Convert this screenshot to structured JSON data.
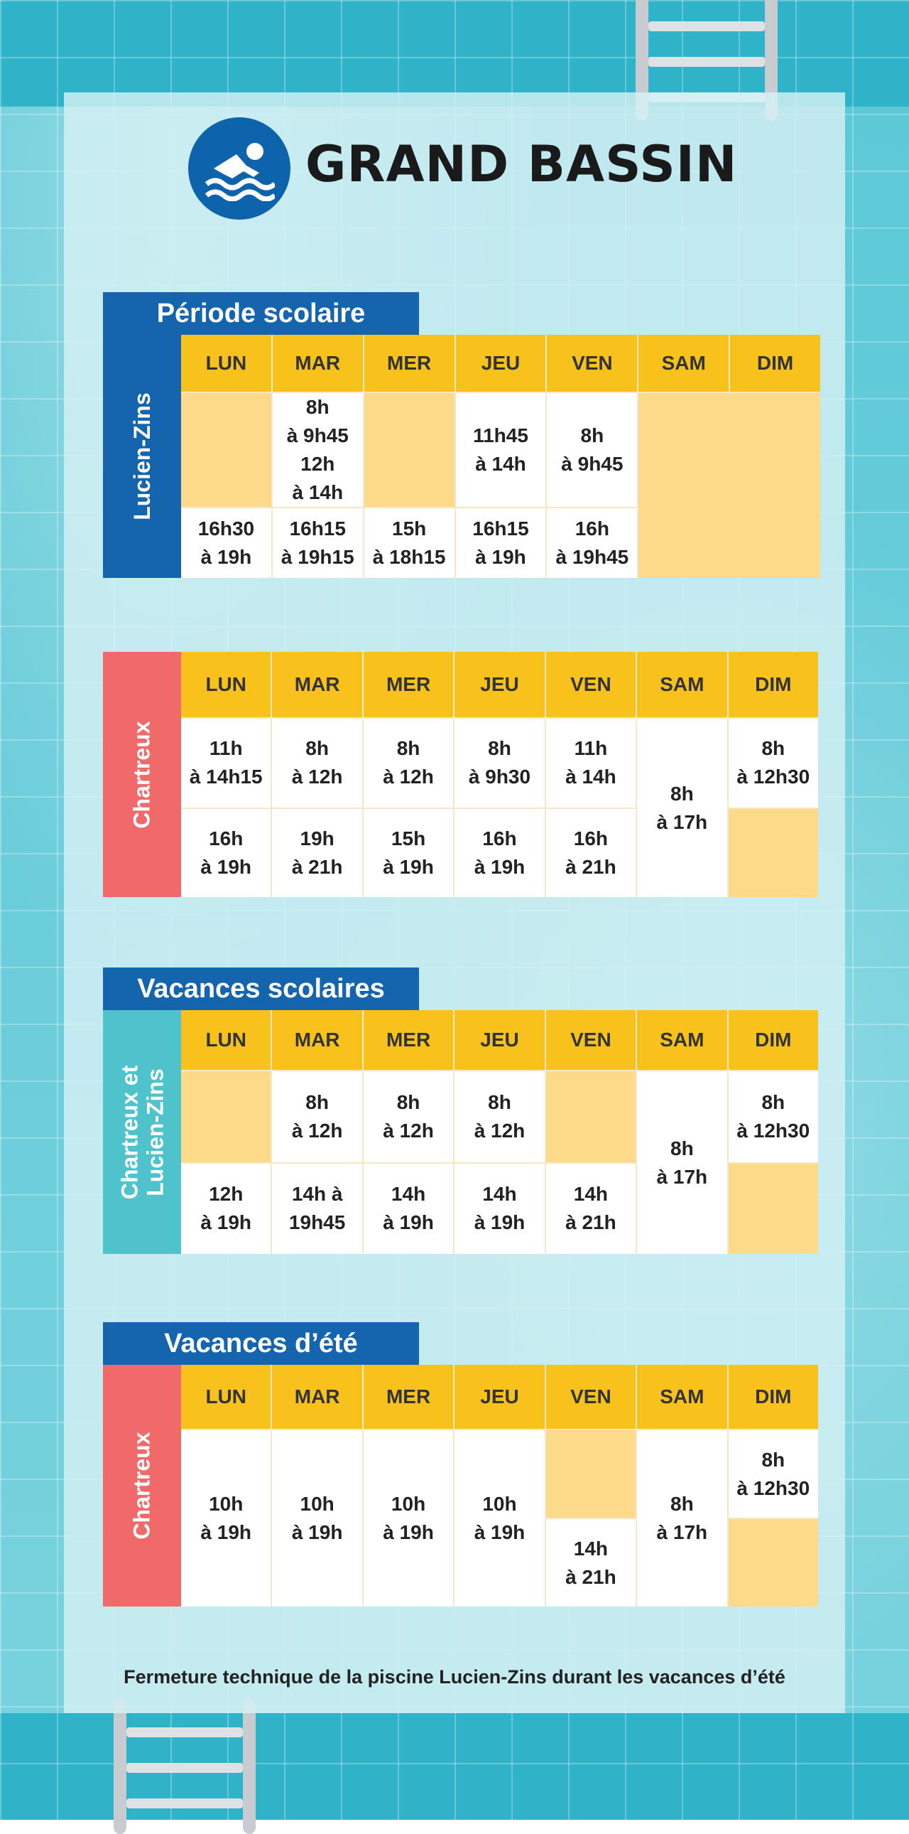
{
  "title": "GRAND BASSIN",
  "colors": {
    "blue": "#1565ae",
    "coral": "#f06a6a",
    "teal": "#4ec3cc",
    "yellow": "#f8c21c",
    "closed": "#fcda8a"
  },
  "icons": {
    "title_icon": "swimmer-icon"
  },
  "days": [
    "LUN",
    "MAR",
    "MER",
    "JEU",
    "VEN",
    "SAM",
    "DIM"
  ],
  "periode_scolaire": {
    "label": "Période scolaire",
    "lucien_zins": {
      "tab": "Lucien-Zins",
      "morning": [
        "",
        "8h\nà 9h45\n12h\nà 14h",
        "",
        "11h45\nà 14h",
        "8h\nà 9h45"
      ],
      "afternoon": [
        "16h30\nà 19h",
        "16h15\nà 19h15",
        "15h\nà 18h15",
        "16h15\nà 19h",
        "16h\nà 19h45"
      ]
    },
    "chartreux": {
      "tab": "Chartreux",
      "morning": [
        "11h\nà 14h15",
        "8h\nà 12h",
        "8h\nà 12h",
        "8h\nà 9h30",
        "11h\nà 14h"
      ],
      "afternoon": [
        "16h\nà 19h",
        "19h\nà 21h",
        "15h\nà 19h",
        "16h\nà 19h",
        "16h\nà 21h"
      ],
      "sam": "8h\nà 17h",
      "dim_morning": "8h\nà 12h30"
    }
  },
  "vacances_scolaires": {
    "label": "Vacances scolaires",
    "tab": "Chartreux et\nLucien-Zins",
    "morning": [
      "",
      "8h\nà 12h",
      "8h\nà 12h",
      "8h\nà 12h",
      ""
    ],
    "afternoon": [
      "12h\nà 19h",
      "14h à\n19h45",
      "14h\nà 19h",
      "14h\nà 19h",
      "14h\nà 21h"
    ],
    "sam": "8h\nà 17h",
    "dim_morning": "8h\nà 12h30"
  },
  "vacances_ete": {
    "label": "Vacances d’été",
    "tab": "Chartreux",
    "full": [
      "10h\nà 19h",
      "10h\nà 19h",
      "10h\nà 19h",
      "10h\nà 19h"
    ],
    "ven_afternoon": "14h\nà 21h",
    "sam": "8h\nà 17h",
    "dim_morning": "8h\nà 12h30"
  },
  "footnote": "Fermeture technique de la piscine Lucien-Zins durant les vacances d’été"
}
